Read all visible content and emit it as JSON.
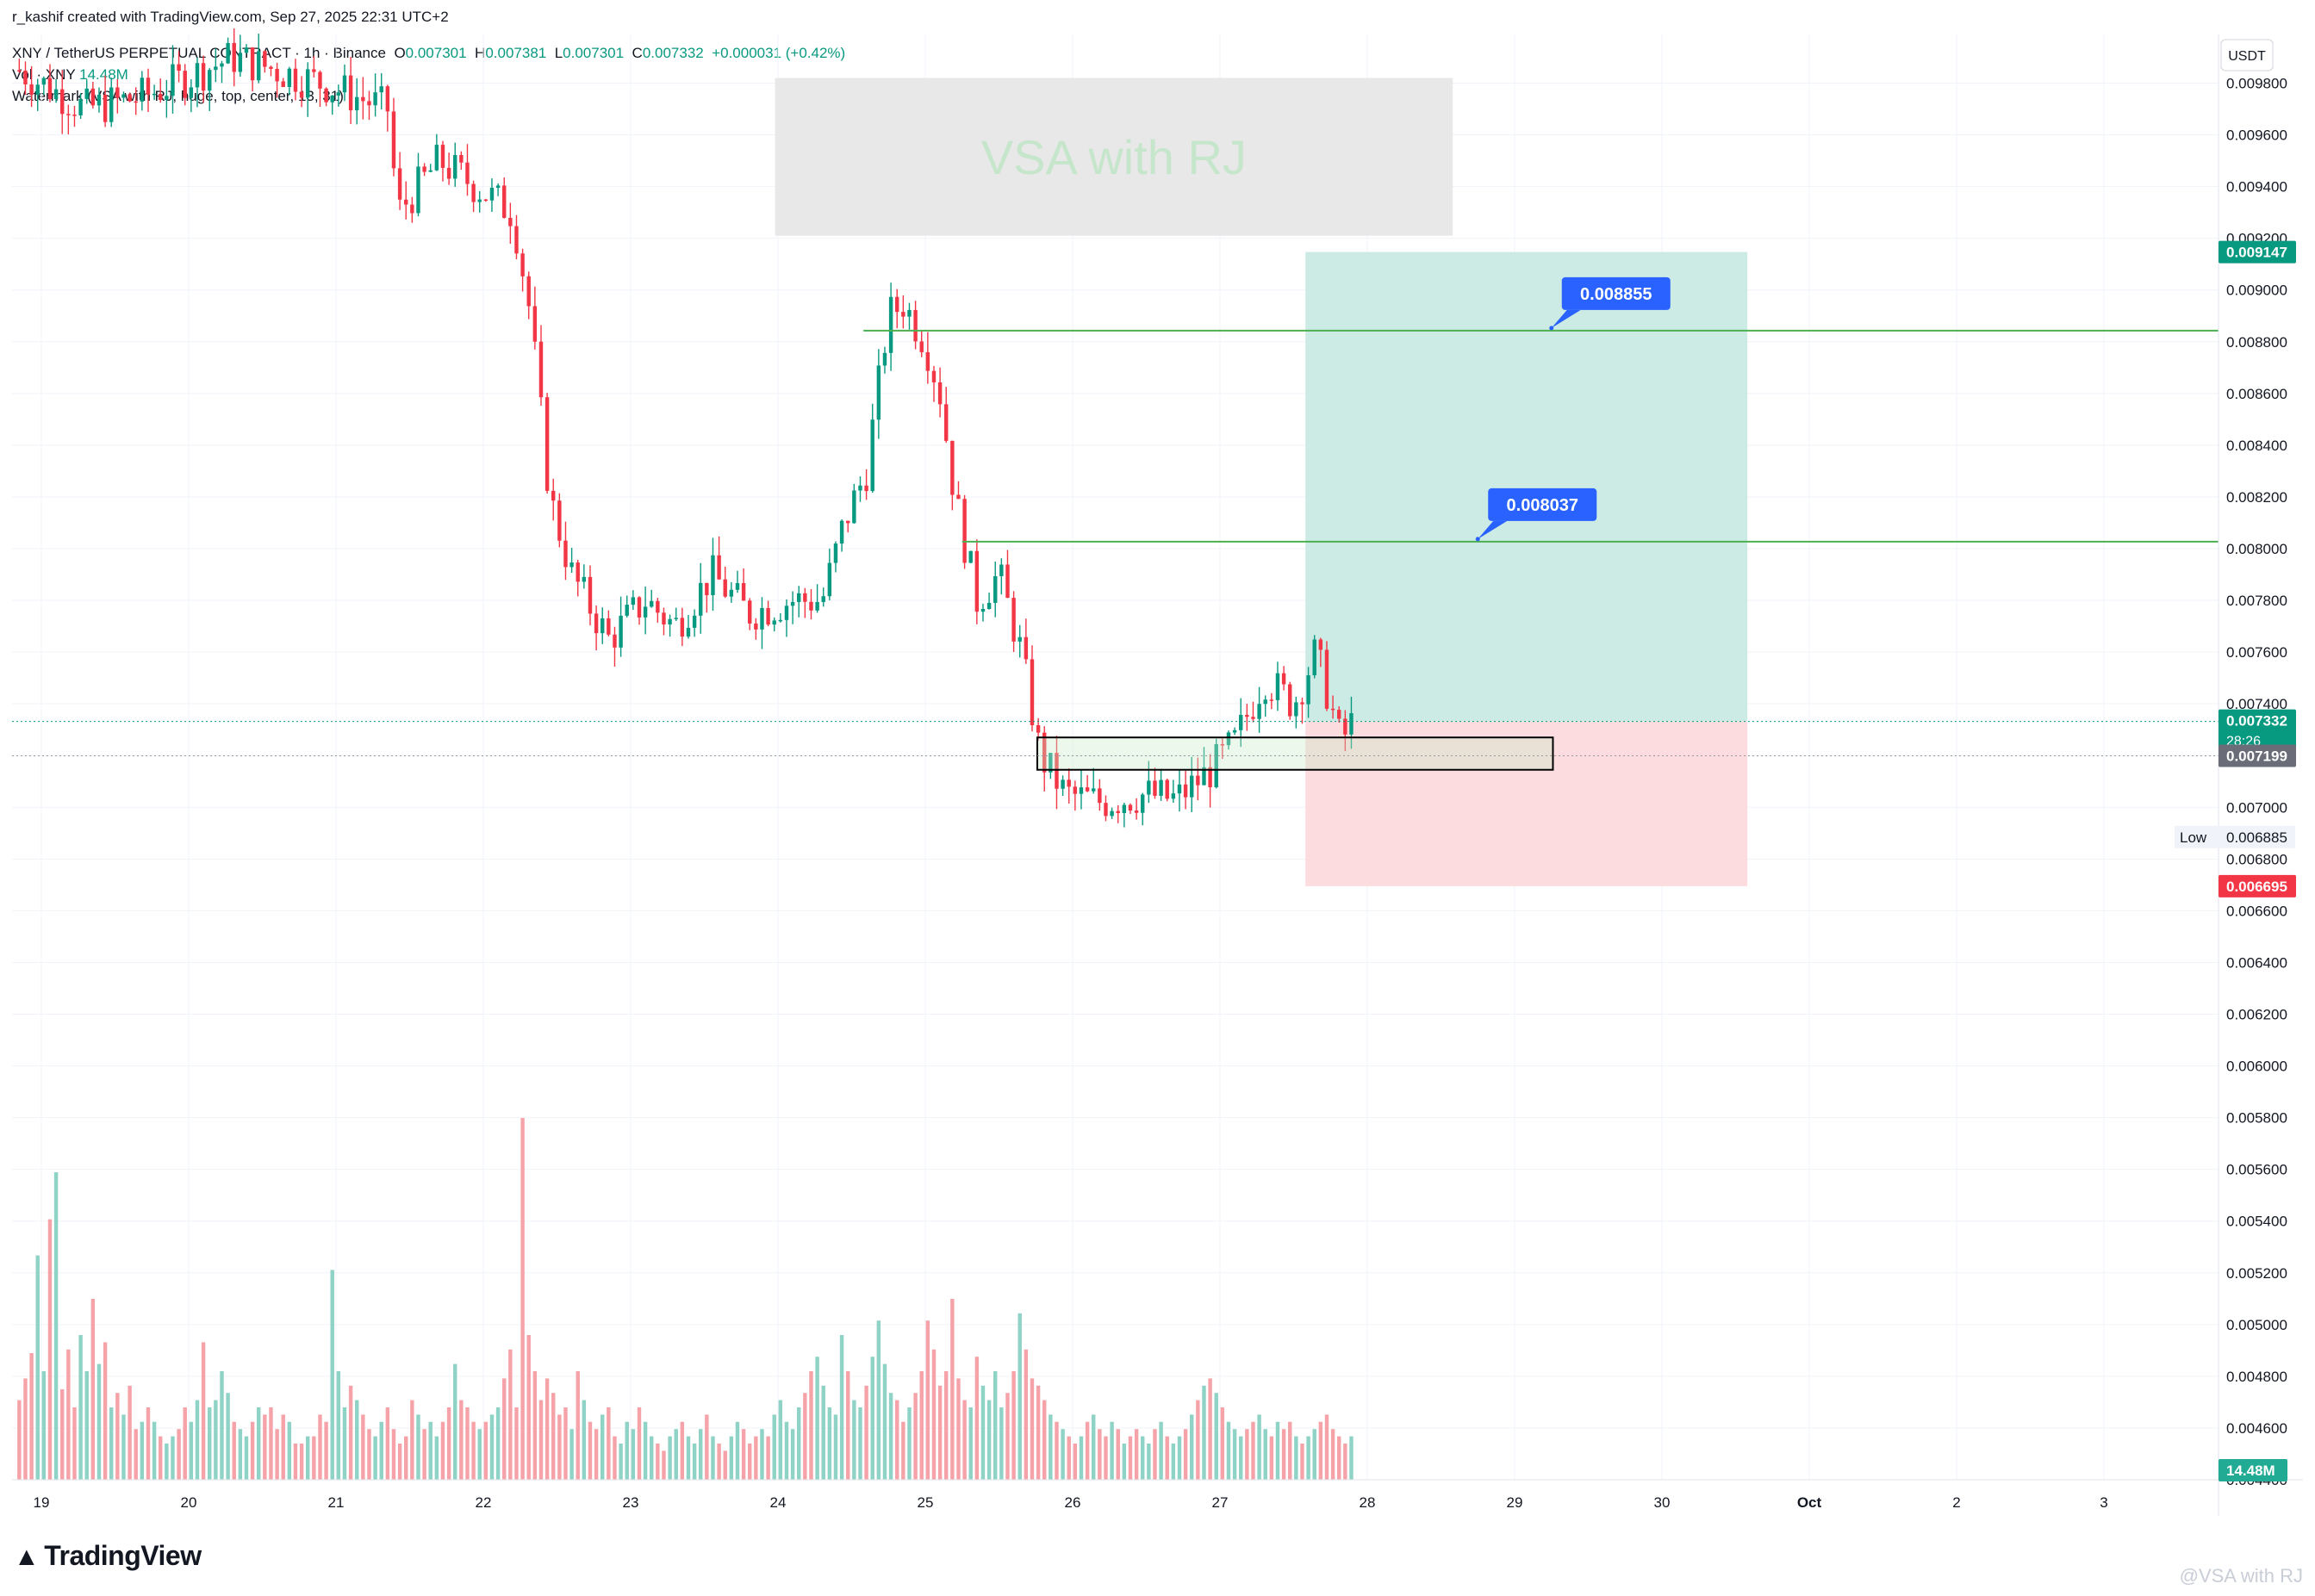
{
  "header": {
    "created_by": "r_kashif created with TradingView.com, Sep 27, 2025 22:31 UTC+2",
    "symbol": "XNY / TetherUS PERPETUAL CONTRACT · 1h · Binance",
    "open_label": "O",
    "open": "0.007301",
    "high_label": "H",
    "high": "0.007381",
    "low_label": "L",
    "low": "0.007301",
    "close_label": "C",
    "close": "0.007332",
    "change": "+0.000031 (+0.42%)",
    "vol_label": "Vol · XNY",
    "vol_value": "14.48M",
    "watermark_settings": "Watermark (VSA with RJ, huge, top, center, 13, 31)"
  },
  "watermark_text": "VSA with RJ",
  "currency": "USDT",
  "branding": {
    "logo_text": "TradingView",
    "corner_watermark": "@VSA with RJ"
  },
  "colors": {
    "up": "#089981",
    "down": "#f23645",
    "up_vol": "#8fd2c6",
    "down_vol": "#f5a3a8",
    "target_zone": "#cdebe5",
    "stop_zone": "#fcdcde",
    "level_line": "#4caf50",
    "callout": "#2962ff"
  },
  "chart_data": {
    "type": "candlestick",
    "symbol": "XNY/USDT",
    "timeframe": "1h",
    "x_ticks": [
      "19",
      "20",
      "21",
      "22",
      "23",
      "24",
      "25",
      "26",
      "27",
      "28",
      "29",
      "30",
      "Oct",
      "2",
      "3"
    ],
    "y_ticks": [
      "0.009800",
      "0.009600",
      "0.009400",
      "0.009200",
      "0.009000",
      "0.008800",
      "0.008600",
      "0.008400",
      "0.008200",
      "0.008000",
      "0.007800",
      "0.007600",
      "0.007400",
      "0.007200",
      "0.007000",
      "0.006800",
      "0.006600",
      "0.006400",
      "0.006200",
      "0.006000",
      "0.005800",
      "0.005600",
      "0.005400",
      "0.005200",
      "0.005000",
      "0.004800",
      "0.004600",
      "0.004400"
    ],
    "path_day_price": [
      [
        18.85,
        0.00985
      ],
      [
        19.3,
        0.0097
      ],
      [
        19.7,
        0.00975
      ],
      [
        20.3,
        0.0099
      ],
      [
        20.9,
        0.0098
      ],
      [
        21.35,
        0.0097
      ],
      [
        21.42,
        0.0093
      ],
      [
        21.7,
        0.0095
      ],
      [
        21.95,
        0.0094
      ],
      [
        22.2,
        0.0093
      ],
      [
        22.32,
        0.0089
      ],
      [
        22.45,
        0.0082
      ],
      [
        22.6,
        0.0079
      ],
      [
        22.85,
        0.00765
      ],
      [
        23.1,
        0.0078
      ],
      [
        23.3,
        0.0077
      ],
      [
        23.55,
        0.0079
      ],
      [
        23.8,
        0.00775
      ],
      [
        24.1,
        0.0078
      ],
      [
        24.3,
        0.0078
      ],
      [
        24.45,
        0.0081
      ],
      [
        24.6,
        0.0083
      ],
      [
        24.75,
        0.0089
      ],
      [
        24.85,
        0.00895
      ],
      [
        25.0,
        0.0088
      ],
      [
        25.1,
        0.0086
      ],
      [
        25.2,
        0.0082
      ],
      [
        25.35,
        0.0078
      ],
      [
        25.5,
        0.0079
      ],
      [
        25.65,
        0.0076
      ],
      [
        25.78,
        0.0072
      ],
      [
        25.95,
        0.00705
      ],
      [
        26.2,
        0.00702
      ],
      [
        26.5,
        0.00705
      ],
      [
        26.7,
        0.00703
      ],
      [
        26.95,
        0.00715
      ],
      [
        27.1,
        0.00725
      ],
      [
        27.3,
        0.0075
      ],
      [
        27.5,
        0.0074
      ],
      [
        27.65,
        0.0076
      ],
      [
        27.75,
        0.0074
      ],
      [
        27.82,
        0.00725
      ],
      [
        27.9,
        0.00733
      ]
    ],
    "volume_profile": [
      0.22,
      0.28,
      0.35,
      0.62,
      0.3,
      0.72,
      0.85,
      0.25,
      0.36,
      0.2,
      0.4,
      0.3,
      0.5,
      0.32,
      0.38,
      0.2,
      0.24,
      0.18,
      0.26,
      0.14,
      0.16,
      0.2,
      0.16,
      0.12,
      0.1,
      0.12,
      0.14,
      0.2,
      0.16,
      0.22,
      0.38,
      0.2,
      0.22,
      0.3,
      0.24,
      0.16,
      0.14,
      0.12,
      0.16,
      0.2,
      0.18,
      0.2,
      0.14,
      0.18,
      0.16,
      0.1,
      0.1,
      0.12,
      0.12,
      0.18,
      0.16,
      0.58,
      0.3,
      0.2,
      0.26,
      0.22,
      0.18,
      0.14,
      0.12,
      0.16,
      0.2,
      0.14,
      0.1,
      0.12,
      0.22,
      0.18,
      0.14,
      0.16,
      0.12,
      0.16,
      0.2,
      0.32,
      0.22,
      0.2,
      0.16,
      0.14,
      0.16,
      0.18,
      0.2,
      0.28,
      0.36,
      0.2,
      1.0,
      0.4,
      0.3,
      0.22,
      0.28,
      0.24,
      0.18,
      0.2,
      0.14,
      0.3,
      0.22,
      0.16,
      0.14,
      0.18,
      0.2,
      0.12,
      0.1,
      0.16,
      0.14,
      0.2,
      0.16,
      0.12,
      0.1,
      0.08,
      0.12,
      0.14,
      0.16,
      0.12,
      0.1,
      0.14,
      0.18,
      0.12,
      0.1,
      0.08,
      0.12,
      0.16,
      0.14,
      0.1,
      0.12,
      0.14,
      0.12,
      0.18,
      0.22,
      0.16,
      0.14,
      0.2,
      0.24,
      0.3,
      0.34,
      0.26,
      0.2,
      0.18,
      0.4,
      0.3,
      0.22,
      0.2,
      0.26,
      0.34,
      0.44,
      0.32,
      0.24,
      0.22,
      0.16,
      0.2,
      0.24,
      0.3,
      0.44,
      0.36,
      0.26,
      0.3,
      0.5,
      0.28,
      0.22,
      0.2,
      0.34,
      0.26,
      0.22,
      0.3,
      0.2,
      0.24,
      0.3,
      0.46,
      0.36,
      0.28,
      0.26,
      0.22,
      0.18,
      0.16,
      0.14,
      0.12,
      0.1,
      0.12,
      0.16,
      0.18,
      0.14,
      0.12,
      0.16,
      0.14,
      0.1,
      0.12,
      0.14,
      0.12,
      0.1,
      0.14,
      0.16,
      0.12,
      0.1,
      0.12,
      0.14,
      0.18,
      0.22,
      0.26,
      0.28,
      0.24,
      0.2,
      0.16,
      0.14,
      0.12,
      0.14,
      0.16,
      0.18,
      0.14,
      0.12,
      0.16,
      0.14,
      0.16,
      0.12,
      0.1,
      0.12,
      0.14,
      0.16,
      0.18,
      0.14,
      0.12,
      0.1,
      0.12,
      0.14,
      0.18,
      0.22,
      0.24,
      0.2,
      0.16,
      0.14,
      0.18,
      0.2,
      0.12,
      0.1,
      0.08,
      0.06
    ],
    "position": {
      "entry": 0.007332,
      "target": 0.009147,
      "stop": 0.006695,
      "start_day": 27.58,
      "end_day": 30.58
    },
    "demand_box": {
      "top": 0.00727,
      "bottom": 0.007145,
      "start_day": 25.76,
      "end_day": 29.26
    },
    "level_lines": [
      {
        "price": 0.008843,
        "label": "0.008843",
        "start_day": 24.58,
        "callout": "0.008855",
        "callout_day": 29.25
      },
      {
        "price": 0.008027,
        "label": "0.008027",
        "start_day": 25.25,
        "callout": "0.008037",
        "callout_day": 28.75
      }
    ],
    "price_labels": [
      {
        "price": 0.009147,
        "text": "0.009147",
        "kind": "target"
      },
      {
        "price": 0.007332,
        "text": "0.007332",
        "sub": "28:26",
        "kind": "last"
      },
      {
        "price": 0.007199,
        "text": "0.007199",
        "kind": "gray"
      },
      {
        "price": 0.006885,
        "text": "0.006885",
        "prefix": "Low",
        "kind": "low"
      },
      {
        "price": 0.006695,
        "text": "0.006695",
        "kind": "stop"
      }
    ],
    "volume_label": "14.48M",
    "watermark_box": {
      "top": 0.00982,
      "bottom": 0.00921,
      "start_day": 23.98,
      "end_day": 28.58
    },
    "ylim": [
      0.00425,
      0.0099
    ],
    "xlim": [
      18.9,
      33.8
    ]
  }
}
